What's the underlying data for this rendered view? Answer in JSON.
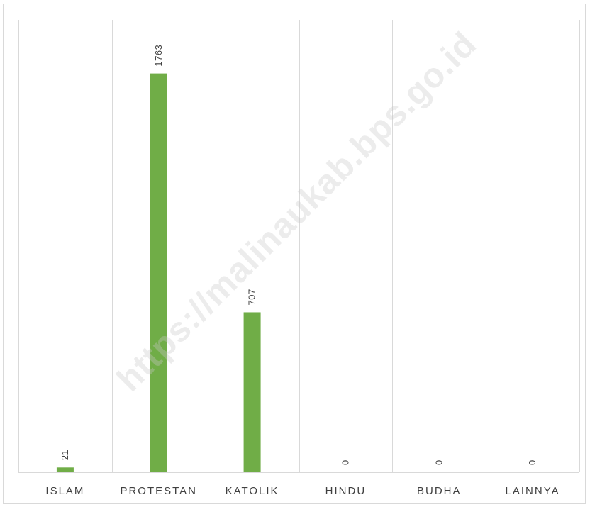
{
  "chart_data": {
    "type": "bar",
    "categories": [
      "ISLAM",
      "PROTESTAN",
      "KATOLIK",
      "HINDU",
      "BUDHA",
      "LAINNYA"
    ],
    "values": [
      21,
      1763,
      707,
      0,
      0,
      0
    ],
    "data_labels": [
      "21",
      "1763",
      "707",
      "0",
      "0",
      "0"
    ],
    "title": "",
    "xlabel": "",
    "ylabel": "",
    "ylim": [
      0,
      2000
    ],
    "y_axis_visible": false,
    "grid": "vertical category separators",
    "legend": "none",
    "bar_color": "#70ad47"
  },
  "watermark": {
    "text": "https://malinaukab.bps.go.id"
  },
  "colors": {
    "bar": "#70ad47",
    "grid": "#d9d9d9",
    "text": "#404040"
  }
}
